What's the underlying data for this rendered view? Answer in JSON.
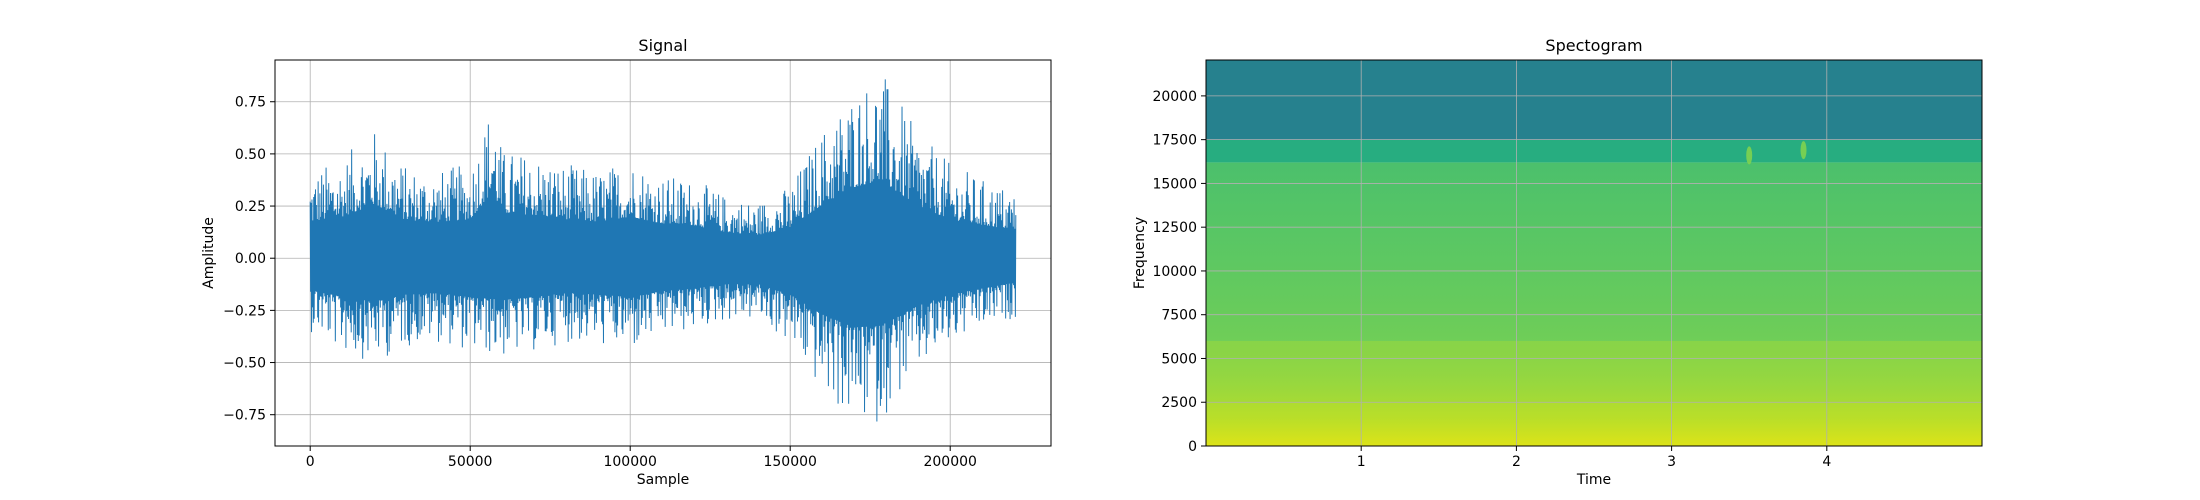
{
  "chart_data": [
    {
      "type": "line",
      "title": "Signal",
      "xlabel": "Sample",
      "ylabel": "Amplitude",
      "xlim": [
        -11000,
        231500
      ],
      "ylim": [
        -0.9,
        0.95
      ],
      "x_ticks": [
        0,
        50000,
        100000,
        150000,
        200000
      ],
      "x_tick_labels": [
        "0",
        "50000",
        "100000",
        "150000",
        "200000"
      ],
      "y_ticks": [
        -0.75,
        -0.5,
        -0.25,
        0.0,
        0.25,
        0.5,
        0.75
      ],
      "y_tick_labels": [
        "−0.75",
        "−0.50",
        "−0.25",
        "0.00",
        "0.25",
        "0.50",
        "0.75"
      ],
      "grid": true,
      "series": [
        {
          "color": "#1f77b4",
          "sample_range": [
            0,
            220500
          ],
          "envelope_x": [
            0,
            10000,
            20000,
            30000,
            40000,
            50000,
            57000,
            60000,
            70000,
            80000,
            90000,
            100000,
            110000,
            120000,
            130000,
            140000,
            150000,
            160000,
            170000,
            178000,
            190000,
            200000,
            210000,
            220500
          ],
          "envelope_upper": [
            0.42,
            0.48,
            0.62,
            0.44,
            0.42,
            0.45,
            0.77,
            0.52,
            0.5,
            0.45,
            0.42,
            0.48,
            0.4,
            0.38,
            0.3,
            0.27,
            0.35,
            0.62,
            0.82,
            0.9,
            0.6,
            0.45,
            0.38,
            0.33
          ],
          "envelope_lower": [
            -0.35,
            -0.45,
            -0.5,
            -0.42,
            -0.4,
            -0.45,
            -0.47,
            -0.48,
            -0.45,
            -0.4,
            -0.42,
            -0.45,
            -0.38,
            -0.35,
            -0.3,
            -0.3,
            -0.42,
            -0.65,
            -0.8,
            -0.78,
            -0.55,
            -0.42,
            -0.35,
            -0.28
          ]
        }
      ]
    },
    {
      "type": "heatmap",
      "title": "Spectogram",
      "xlabel": "Time",
      "ylabel": "Frequency",
      "xlim": [
        0,
        5.0
      ],
      "ylim": [
        0,
        22050
      ],
      "x_ticks": [
        1,
        2,
        3,
        4
      ],
      "x_tick_labels": [
        "1",
        "2",
        "3",
        "4"
      ],
      "y_ticks": [
        0,
        2500,
        5000,
        7500,
        10000,
        12500,
        15000,
        17500,
        20000
      ],
      "y_tick_labels": [
        "0",
        "2500",
        "5000",
        "7500",
        "10000",
        "12500",
        "15000",
        "17500",
        "20000"
      ],
      "grid": true,
      "colormap": "viridis",
      "band_edges_hz": [
        0,
        2500,
        6000,
        16200,
        17500,
        22050
      ],
      "band_colors": [
        "#d6e21a",
        "#a8db34",
        "#6ccd59",
        "#27ad80",
        "#26818e"
      ],
      "hot_spots": [
        {
          "time": 3.5,
          "freq": 16600,
          "color": "#7fd34e"
        },
        {
          "time": 3.85,
          "freq": 16900,
          "color": "#7fd34e"
        }
      ]
    }
  ]
}
